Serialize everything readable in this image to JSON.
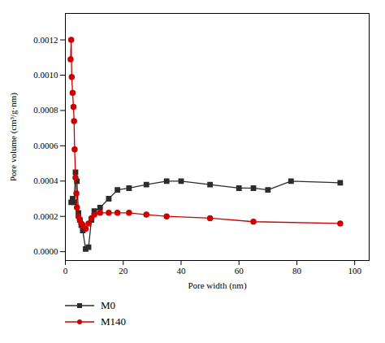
{
  "chart_data": {
    "type": "line",
    "xlabel": "Pore width (nm)",
    "ylabel": "Pore volume (cm³/g·nm)",
    "series": [
      {
        "name": "M0",
        "color": "#2c2c2c",
        "marker": "square",
        "line_style": "solid",
        "x": [
          2.0,
          2.5,
          3.0,
          3.5,
          4.0,
          4.5,
          5.0,
          5.5,
          6.0,
          7.0,
          8.0,
          9.0,
          10.0,
          12.0,
          15.0,
          18.0,
          22.0,
          28.0,
          35.0,
          40.0,
          50.0,
          60.0,
          65.0,
          70.0,
          78.0,
          95.0
        ],
        "values": [
          0.00028,
          0.0003,
          0.00028,
          0.00045,
          0.0004,
          0.00022,
          0.00018,
          0.00015,
          0.00012,
          1.5e-05,
          2.5e-05,
          0.00018,
          0.00023,
          0.00025,
          0.0003,
          0.00035,
          0.00036,
          0.00038,
          0.0004,
          0.0004,
          0.00038,
          0.00036,
          0.00036,
          0.00035,
          0.0004,
          0.00039
        ]
      },
      {
        "name": "M140",
        "color": "#cc0000",
        "marker": "circle",
        "line_style": "solid",
        "x": [
          1.8,
          2.0,
          2.2,
          2.5,
          2.8,
          3.0,
          3.2,
          3.5,
          3.8,
          4.0,
          4.5,
          5.0,
          5.5,
          6.0,
          7.0,
          8.0,
          9.0,
          10.0,
          12.0,
          15.0,
          18.0,
          22.0,
          28.0,
          35.0,
          50.0,
          65.0,
          95.0
        ],
        "values": [
          0.00109,
          0.0012,
          0.00099,
          0.0009,
          0.00082,
          0.00074,
          0.00058,
          0.00042,
          0.00033,
          0.00025,
          0.0002,
          0.00018,
          0.00016,
          0.00015,
          0.00013,
          0.00016,
          0.00019,
          0.00021,
          0.00022,
          0.00022,
          0.00022,
          0.00022,
          0.00021,
          0.0002,
          0.00019,
          0.00017,
          0.00016
        ]
      }
    ],
    "xlim": [
      0,
      105
    ],
    "ylim": [
      -5e-05,
      0.00135
    ],
    "xticks": [
      0,
      20,
      40,
      60,
      80,
      100
    ],
    "yticks": [
      {
        "value": 0.0,
        "label": "0.0000"
      },
      {
        "value": 0.0002,
        "label": "0.0002"
      },
      {
        "value": 0.0004,
        "label": "0.0004"
      },
      {
        "value": 0.0006,
        "label": "0.0006"
      },
      {
        "value": 0.0008,
        "label": "0.0008"
      },
      {
        "value": 0.001,
        "label": "0.0010"
      },
      {
        "value": 0.0012,
        "label": "0.0012"
      }
    ],
    "grid": false,
    "legend": "bottom"
  }
}
